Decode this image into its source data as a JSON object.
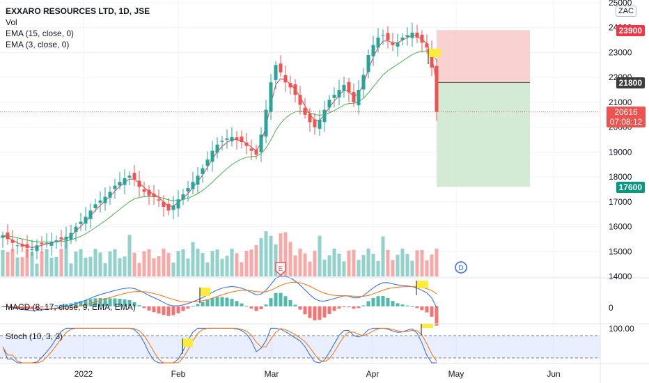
{
  "legend": {
    "title": "EXXARO RESOURCES LTD, 1D, JSE",
    "vol": "Vol",
    "ema15": "EMA (15, close, 0)",
    "ema3": "EMA (3, close, 0)"
  },
  "currency": "ZAC",
  "macd_label": "MACD (8, 17, close, 9, EMA, EMA)",
  "stoch_label": "Stoch (10, 3, 3)",
  "price_axis_ticks": [
    "25000",
    "24000",
    "23000",
    "22000",
    "21000",
    "20000",
    "19000",
    "18000",
    "17000",
    "16000",
    "15000",
    "14000"
  ],
  "macd_axis_ticks": [
    "0"
  ],
  "stoch_axis_ticks": [
    "100.00"
  ],
  "time_axis_ticks": [
    "2022",
    "Feb",
    "Mar",
    "Apr",
    "May",
    "Jun"
  ],
  "earnings_marker": "E",
  "dividend_marker": "D",
  "tags": {
    "stop": "23900",
    "entry": "21800",
    "target": "17600",
    "current": "20616",
    "countdown": "07:08:12"
  },
  "colors": {
    "up": "#26a69a",
    "down": "#ef5350",
    "ema15": "#4caf50",
    "ema3": "#f23645",
    "macd": "#2962ff",
    "signal": "#ff6d00",
    "stop_zone": "#f7c6c6",
    "target_zone": "#c8e6c9",
    "highlight": "#ffeb3b"
  },
  "chart_data": {
    "type": "candlestick",
    "symbol": "EXXARO RESOURCES LTD",
    "interval": "1D",
    "exchange": "JSE",
    "y_range": [
      14000,
      25000
    ],
    "position": {
      "stop": 23900,
      "entry": 21800,
      "target": 17600,
      "current": 20616
    },
    "closes": [
      15650,
      15500,
      15350,
      15250,
      15200,
      15150,
      15100,
      15250,
      15300,
      15350,
      15400,
      15450,
      15500,
      15600,
      15750,
      16000,
      16200,
      16400,
      16650,
      16900,
      17050,
      17200,
      17400,
      17650,
      17800,
      17950,
      18050,
      17900,
      17600,
      17400,
      17250,
      17200,
      17050,
      16800,
      16650,
      16850,
      17100,
      17300,
      17550,
      17800,
      18050,
      18350,
      18700,
      19050,
      19300,
      19450,
      19550,
      19600,
      19500,
      19400,
      19250,
      19050,
      18900,
      19700,
      20700,
      21800,
      22500,
      22200,
      21800,
      21600,
      21300,
      20900,
      20500,
      20200,
      20000,
      20300,
      20700,
      21100,
      21300,
      21500,
      21700,
      21400,
      21000,
      21500,
      22100,
      22900,
      23300,
      23600,
      23700,
      23500,
      23300,
      23400,
      23600,
      23700,
      23800,
      23600,
      23400,
      23200,
      22400,
      20616
    ]
  }
}
